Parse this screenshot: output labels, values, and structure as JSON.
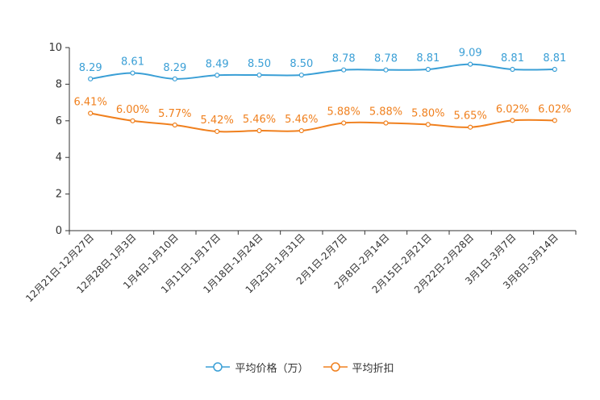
{
  "chart_data": {
    "type": "line",
    "title": "",
    "xlabel": "",
    "ylabel": "",
    "ylim": [
      0,
      10
    ],
    "yticks": [
      0,
      2,
      4,
      6,
      8,
      10
    ],
    "grid": false,
    "legend_position": "bottom-center",
    "categories": [
      "12月21日-12月27日",
      "12月28日-1月3日",
      "1月4日-1月10日",
      "1月11日-1月17日",
      "1月18日-1月24日",
      "1月25日-1月31日",
      "2月1日-2月7日",
      "2月8日-2月14日",
      "2月15日-2月21日",
      "2月22日-2月28日",
      "3月1日-3月7日",
      "3月8日-3月14日"
    ],
    "series": [
      {
        "name": "平均价格（万）",
        "color": "#3a9fd6",
        "values": [
          8.29,
          8.61,
          8.29,
          8.49,
          8.5,
          8.5,
          8.78,
          8.78,
          8.81,
          9.09,
          8.81,
          8.81
        ],
        "labels": [
          "8.29",
          "8.61",
          "8.29",
          "8.49",
          "8.50",
          "8.50",
          "8.78",
          "8.78",
          "8.81",
          "9.09",
          "8.81",
          "8.81"
        ]
      },
      {
        "name": "平均折扣",
        "color": "#f0801e",
        "values": [
          6.41,
          6.0,
          5.77,
          5.42,
          5.46,
          5.46,
          5.88,
          5.88,
          5.8,
          5.65,
          6.02,
          6.02
        ],
        "labels": [
          "6.41%",
          "6.00%",
          "5.77%",
          "5.42%",
          "5.46%",
          "5.46%",
          "5.88%",
          "5.88%",
          "5.80%",
          "5.65%",
          "6.02%",
          "6.02%"
        ]
      }
    ]
  }
}
